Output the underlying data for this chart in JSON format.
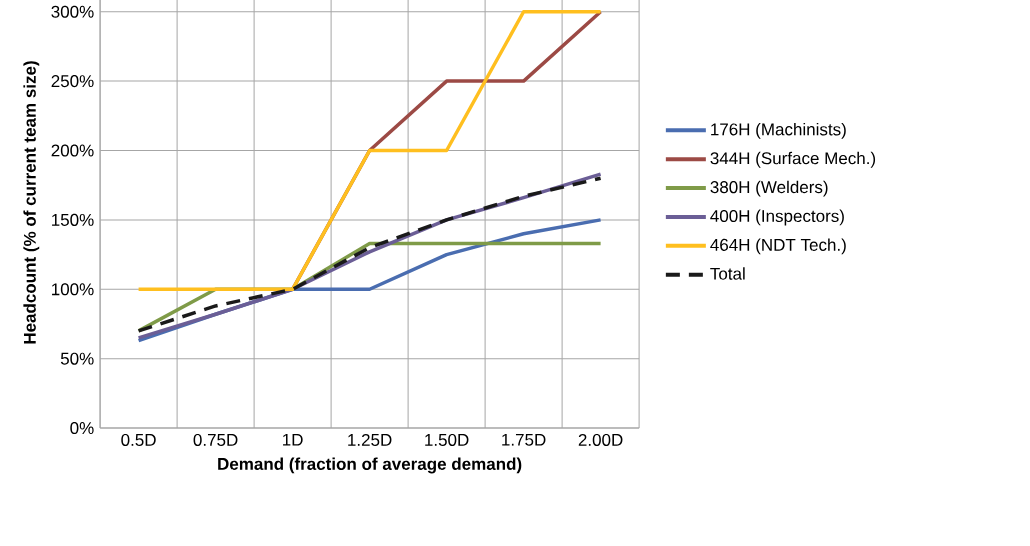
{
  "chart_data": {
    "type": "line",
    "xlabel": "Demand (fraction of average demand)",
    "ylabel": "Headcount (% of current team size)",
    "categories": [
      "0.5D",
      "0.75D",
      "1D",
      "1.25D",
      "1.50D",
      "1.75D",
      "2.00D"
    ],
    "ylim": [
      0,
      325
    ],
    "yticks": [
      {
        "value": 0,
        "label": "0%"
      },
      {
        "value": 50,
        "label": "50%"
      },
      {
        "value": 100,
        "label": "100%"
      },
      {
        "value": 150,
        "label": "150%"
      },
      {
        "value": 200,
        "label": "200%"
      },
      {
        "value": 250,
        "label": "250%"
      },
      {
        "value": 300,
        "label": "300%"
      }
    ],
    "grid": true,
    "legend": "right",
    "marker": "none",
    "series": [
      {
        "name": "176H (Machinists)",
        "color": "#4a6db0",
        "values": [
          63,
          82,
          100,
          100,
          125,
          140,
          150
        ]
      },
      {
        "name": "344H (Surface Mech.)",
        "color": "#9c4a45",
        "values": [
          null,
          null,
          100,
          200,
          250,
          250,
          300
        ]
      },
      {
        "name": "380H (Welders)",
        "color": "#7f9b48",
        "values": [
          70,
          100,
          100,
          133,
          133,
          133,
          133
        ]
      },
      {
        "name": "400H (Inspectors)",
        "color": "#6b5e96",
        "values": [
          65,
          82,
          100,
          127,
          150,
          166,
          183
        ]
      },
      {
        "name": "464H (NDT Tech.)",
        "color": "#ffbf1f",
        "values": [
          100,
          100,
          100,
          200,
          200,
          300,
          300
        ]
      },
      {
        "name": "Total",
        "color": "#1a1a1a",
        "line_style": "dashed",
        "values": [
          70,
          88,
          100,
          130,
          150,
          167,
          180
        ]
      }
    ]
  }
}
